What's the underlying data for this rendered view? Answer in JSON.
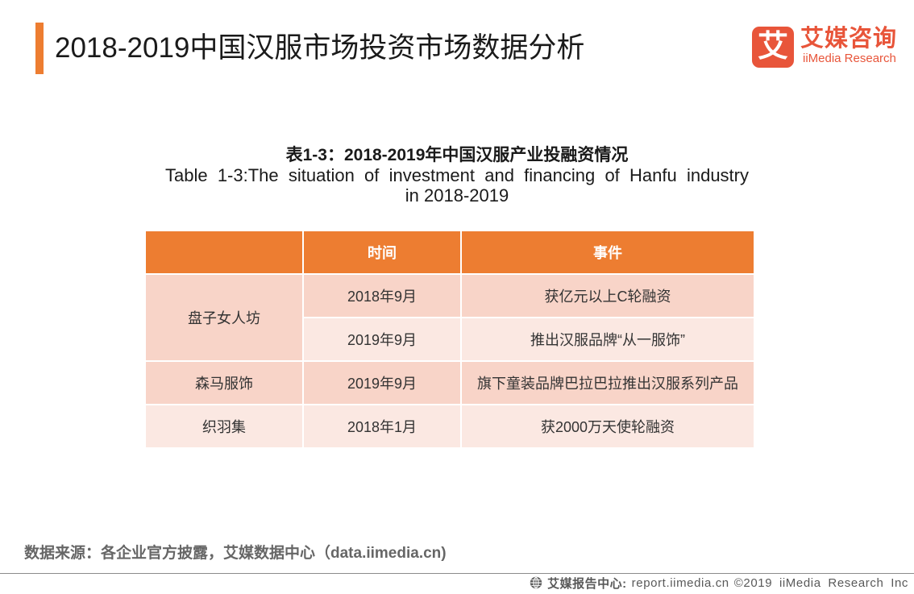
{
  "theme": {
    "accent": "#ED7D31",
    "brand": "#E8553A",
    "band_dark": "#F8D4C8",
    "band_light": "#FBE8E2",
    "text_muted": "#595959"
  },
  "icons": {
    "logo": "iimedia-logo-icon",
    "credit": "globe-icon"
  },
  "header": {
    "title": "2018-2019中国汉服市场投资市场数据分析"
  },
  "logo": {
    "mark": "艾",
    "name_cn": "艾媒咨询",
    "name_en": "iiMedia Research"
  },
  "caption": {
    "cn": "表1-3：2018-2019年中国汉服产业投融资情况",
    "en_line1": "Table 1-3:The situation of investment and financing of Hanfu industry",
    "en_line2": "in 2018-2019"
  },
  "table": {
    "headers": {
      "time": "时间",
      "event": "事件"
    },
    "groups": [
      {
        "company": "盘子女人坊",
        "entries": [
          {
            "time": "2018年9月",
            "event": "获亿元以上C轮融资"
          },
          {
            "time": "2019年9月",
            "event": "推出汉服品牌“从一服饰”"
          }
        ]
      },
      {
        "company": "森马服饰",
        "entries": [
          {
            "time": "2019年9月",
            "event": "旗下童装品牌巴拉巴拉推出汉服系列产品"
          }
        ]
      },
      {
        "company": "织羽集",
        "entries": [
          {
            "time": "2018年1月",
            "event": "获2000万天使轮融资"
          }
        ]
      }
    ]
  },
  "footer": {
    "source": "数据来源：各企业官方披露，艾媒数据中心（data.iimedia.cn)",
    "report_center_label": "艾媒报告中心:",
    "report_center_url": "report.iimedia.cn",
    "copyright": "©2019 iiMedia Research Inc"
  }
}
